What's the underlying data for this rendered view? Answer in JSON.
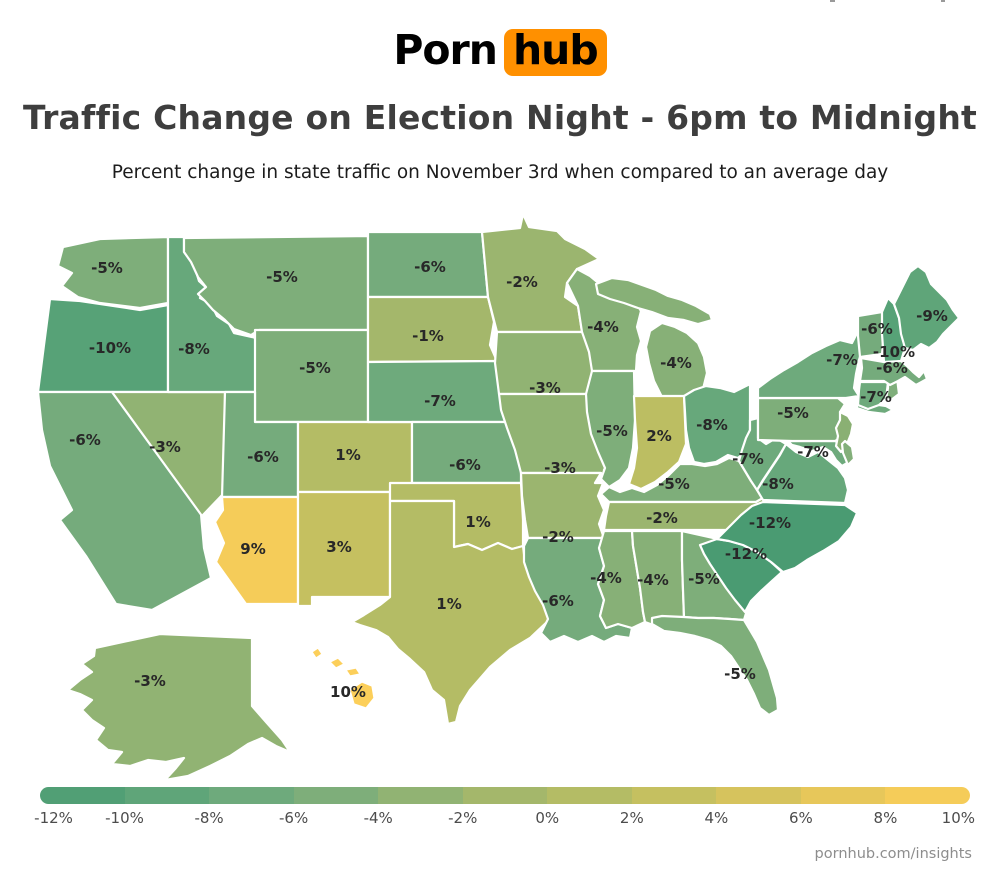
{
  "page": {
    "background": "#ffffff"
  },
  "logo": {
    "word1": "Porn",
    "word2": "hub",
    "badge_color": "#ff9000",
    "text_color": "#000000"
  },
  "title": {
    "text": "Traffic Change on Election Night - 6pm to Midnight",
    "color": "#3e3e3e"
  },
  "subtitle": {
    "text": "Percent change in state traffic on November 3rd when compared to an average day",
    "color": "#1c1c1c"
  },
  "footer": {
    "text": "pornhub.com/insights",
    "color": "#8d8d8d"
  },
  "map": {
    "border_color": "#ffffff",
    "label_color": "#282828"
  },
  "chart_data": {
    "type": "heatmap",
    "subtype": "us_state_choropleth",
    "title": "Traffic Change on Election Night - 6pm to Midnight",
    "subtitle": "Percent change in state traffic on November 3rd when compared to an average day",
    "unit": "%",
    "colorscale": {
      "domain": [
        -12,
        10
      ],
      "stops": [
        [
          -12,
          "#4a9b72"
        ],
        [
          -10,
          "#57a277"
        ],
        [
          -8,
          "#67a87b"
        ],
        [
          -6,
          "#75ab7c"
        ],
        [
          -4,
          "#87b077"
        ],
        [
          -2,
          "#9bb56f"
        ],
        [
          0,
          "#acb967"
        ],
        [
          2,
          "#bcbe62"
        ],
        [
          4,
          "#cdc15e"
        ],
        [
          6,
          "#dfc55c"
        ],
        [
          8,
          "#eec958"
        ],
        [
          10,
          "#fccf5a"
        ]
      ]
    },
    "legend": {
      "min": -12,
      "max": 10,
      "step": 2,
      "tick_labels": [
        "-12%",
        "-10%",
        "-8%",
        "-6%",
        "-4%",
        "-2%",
        "0%",
        "2%",
        "4%",
        "6%",
        "8%",
        "10%"
      ]
    },
    "states": [
      {
        "id": "WA",
        "name": "Washington",
        "value": -5,
        "label": "-5%"
      },
      {
        "id": "OR",
        "name": "Oregon",
        "value": -10,
        "label": "-10%"
      },
      {
        "id": "CA",
        "name": "California",
        "value": -6,
        "label": "-6%"
      },
      {
        "id": "NV",
        "name": "Nevada",
        "value": -3,
        "label": "-3%"
      },
      {
        "id": "ID",
        "name": "Idaho",
        "value": -8,
        "label": "-8%"
      },
      {
        "id": "MT",
        "name": "Montana",
        "value": -5,
        "label": "-5%"
      },
      {
        "id": "WY",
        "name": "Wyoming",
        "value": -5,
        "label": "-5%"
      },
      {
        "id": "UT",
        "name": "Utah",
        "value": -6,
        "label": "-6%"
      },
      {
        "id": "CO",
        "name": "Colorado",
        "value": 1,
        "label": "1%"
      },
      {
        "id": "AZ",
        "name": "Arizona",
        "value": 9,
        "label": "9%"
      },
      {
        "id": "NM",
        "name": "New Mexico",
        "value": 3,
        "label": "3%"
      },
      {
        "id": "ND",
        "name": "North Dakota",
        "value": -6,
        "label": "-6%"
      },
      {
        "id": "SD",
        "name": "South Dakota",
        "value": -1,
        "label": "-1%"
      },
      {
        "id": "NE",
        "name": "Nebraska",
        "value": -7,
        "label": "-7%"
      },
      {
        "id": "KS",
        "name": "Kansas",
        "value": -6,
        "label": "-6%"
      },
      {
        "id": "OK",
        "name": "Oklahoma",
        "value": 1,
        "label": "1%"
      },
      {
        "id": "TX",
        "name": "Texas",
        "value": 1,
        "label": "1%"
      },
      {
        "id": "MN",
        "name": "Minnesota",
        "value": -2,
        "label": "-2%"
      },
      {
        "id": "IA",
        "name": "Iowa",
        "value": -3,
        "label": "-3%"
      },
      {
        "id": "MO",
        "name": "Missouri",
        "value": -3,
        "label": "-3%"
      },
      {
        "id": "AR",
        "name": "Arkansas",
        "value": -2,
        "label": "-2%"
      },
      {
        "id": "LA",
        "name": "Louisiana",
        "value": -6,
        "label": "-6%"
      },
      {
        "id": "WI",
        "name": "Wisconsin",
        "value": -4,
        "label": "-4%"
      },
      {
        "id": "IL",
        "name": "Illinois",
        "value": -5,
        "label": "-5%"
      },
      {
        "id": "MI",
        "name": "Michigan",
        "value": -4,
        "label": "-4%"
      },
      {
        "id": "IN",
        "name": "Indiana",
        "value": 2,
        "label": "2%"
      },
      {
        "id": "OH",
        "name": "Ohio",
        "value": -8,
        "label": "-8%"
      },
      {
        "id": "KY",
        "name": "Kentucky",
        "value": -5,
        "label": "-5%"
      },
      {
        "id": "TN",
        "name": "Tennessee",
        "value": -2,
        "label": "-2%"
      },
      {
        "id": "MS",
        "name": "Mississippi",
        "value": -4,
        "label": "-4%"
      },
      {
        "id": "AL",
        "name": "Alabama",
        "value": -4,
        "label": "-4%"
      },
      {
        "id": "GA",
        "name": "Georgia",
        "value": -5,
        "label": "-5%"
      },
      {
        "id": "FL",
        "name": "Florida",
        "value": -5,
        "label": "-5%"
      },
      {
        "id": "SC",
        "name": "South Carolina",
        "value": -12,
        "label": "-12%"
      },
      {
        "id": "NC",
        "name": "North Carolina",
        "value": -12,
        "label": "-12%"
      },
      {
        "id": "VA",
        "name": "Virginia",
        "value": -8,
        "label": "-8%"
      },
      {
        "id": "WV",
        "name": "West Virginia",
        "value": -7,
        "label": "-7%"
      },
      {
        "id": "MD",
        "name": "Maryland",
        "value": -7,
        "label": "-7%"
      },
      {
        "id": "PA",
        "name": "Pennsylvania",
        "value": -5,
        "label": "-5%"
      },
      {
        "id": "NY",
        "name": "New York",
        "value": -7,
        "label": "-7%"
      },
      {
        "id": "NJ",
        "name": "New Jersey",
        "value": null,
        "label": "",
        "color": "#8ab073"
      },
      {
        "id": "DE",
        "name": "Delaware",
        "value": null,
        "label": "",
        "color": "#83af7a"
      },
      {
        "id": "CT",
        "name": "Connecticut",
        "value": -7,
        "label": "-7%"
      },
      {
        "id": "RI",
        "name": "Rhode Island",
        "value": null,
        "label": "",
        "color": "#7fae7b"
      },
      {
        "id": "MA",
        "name": "Massachusetts",
        "value": -6,
        "label": "-6%"
      },
      {
        "id": "VT",
        "name": "Vermont",
        "value": -6,
        "label": "-6%"
      },
      {
        "id": "NH",
        "name": "New Hampshire",
        "value": -10,
        "label": "-10%"
      },
      {
        "id": "ME",
        "name": "Maine",
        "value": -9,
        "label": "-9%"
      },
      {
        "id": "AK",
        "name": "Alaska",
        "value": -3,
        "label": "-3%"
      },
      {
        "id": "HI",
        "name": "Hawaii",
        "value": 10,
        "label": "10%"
      }
    ]
  }
}
